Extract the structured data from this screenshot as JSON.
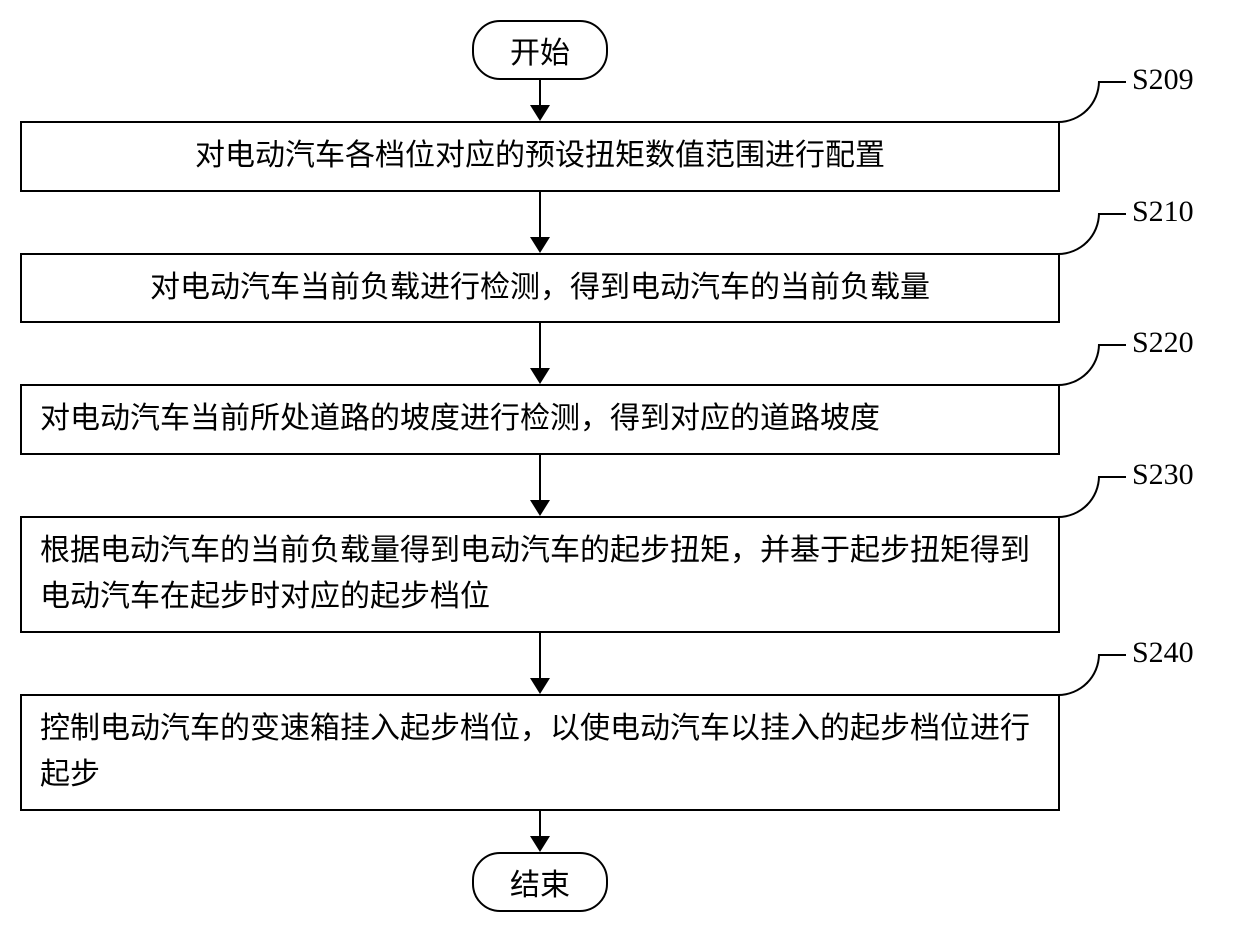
{
  "flowchart": {
    "type": "flowchart",
    "background_color": "#ffffff",
    "border_color": "#000000",
    "text_color": "#000000",
    "font_family": "SimSun",
    "label_font_family": "Times New Roman",
    "node_fontsize": 30,
    "label_fontsize": 30,
    "border_width": 2.5,
    "terminal_border_radius": 28,
    "arrow_head_size": 16,
    "process_width": 1040,
    "start": {
      "label": "开始"
    },
    "end": {
      "label": "结束"
    },
    "steps": [
      {
        "id": "S209",
        "text": "对电动汽车各档位对应的预设扭矩数值范围进行配置",
        "lines": 1,
        "align": "center"
      },
      {
        "id": "S210",
        "text": "对电动汽车当前负载进行检测，得到电动汽车的当前负载量",
        "lines": 1,
        "align": "center"
      },
      {
        "id": "S220",
        "text": "对电动汽车当前所处道路的坡度进行检测，得到对应的道路坡度",
        "lines": 2,
        "align": "left"
      },
      {
        "id": "S230",
        "text": "根据电动汽车的当前负载量得到电动汽车的起步扭矩，并基于起步扭矩得到电动汽车在起步时对应的起步档位",
        "lines": 2,
        "align": "left"
      },
      {
        "id": "S240",
        "text": "控制电动汽车的变速箱挂入起步档位，以使电动汽车以挂入的起步档位进行起步",
        "lines": 2,
        "align": "left"
      }
    ],
    "arrows": {
      "short_gap": 28,
      "long_gap": 48
    }
  }
}
